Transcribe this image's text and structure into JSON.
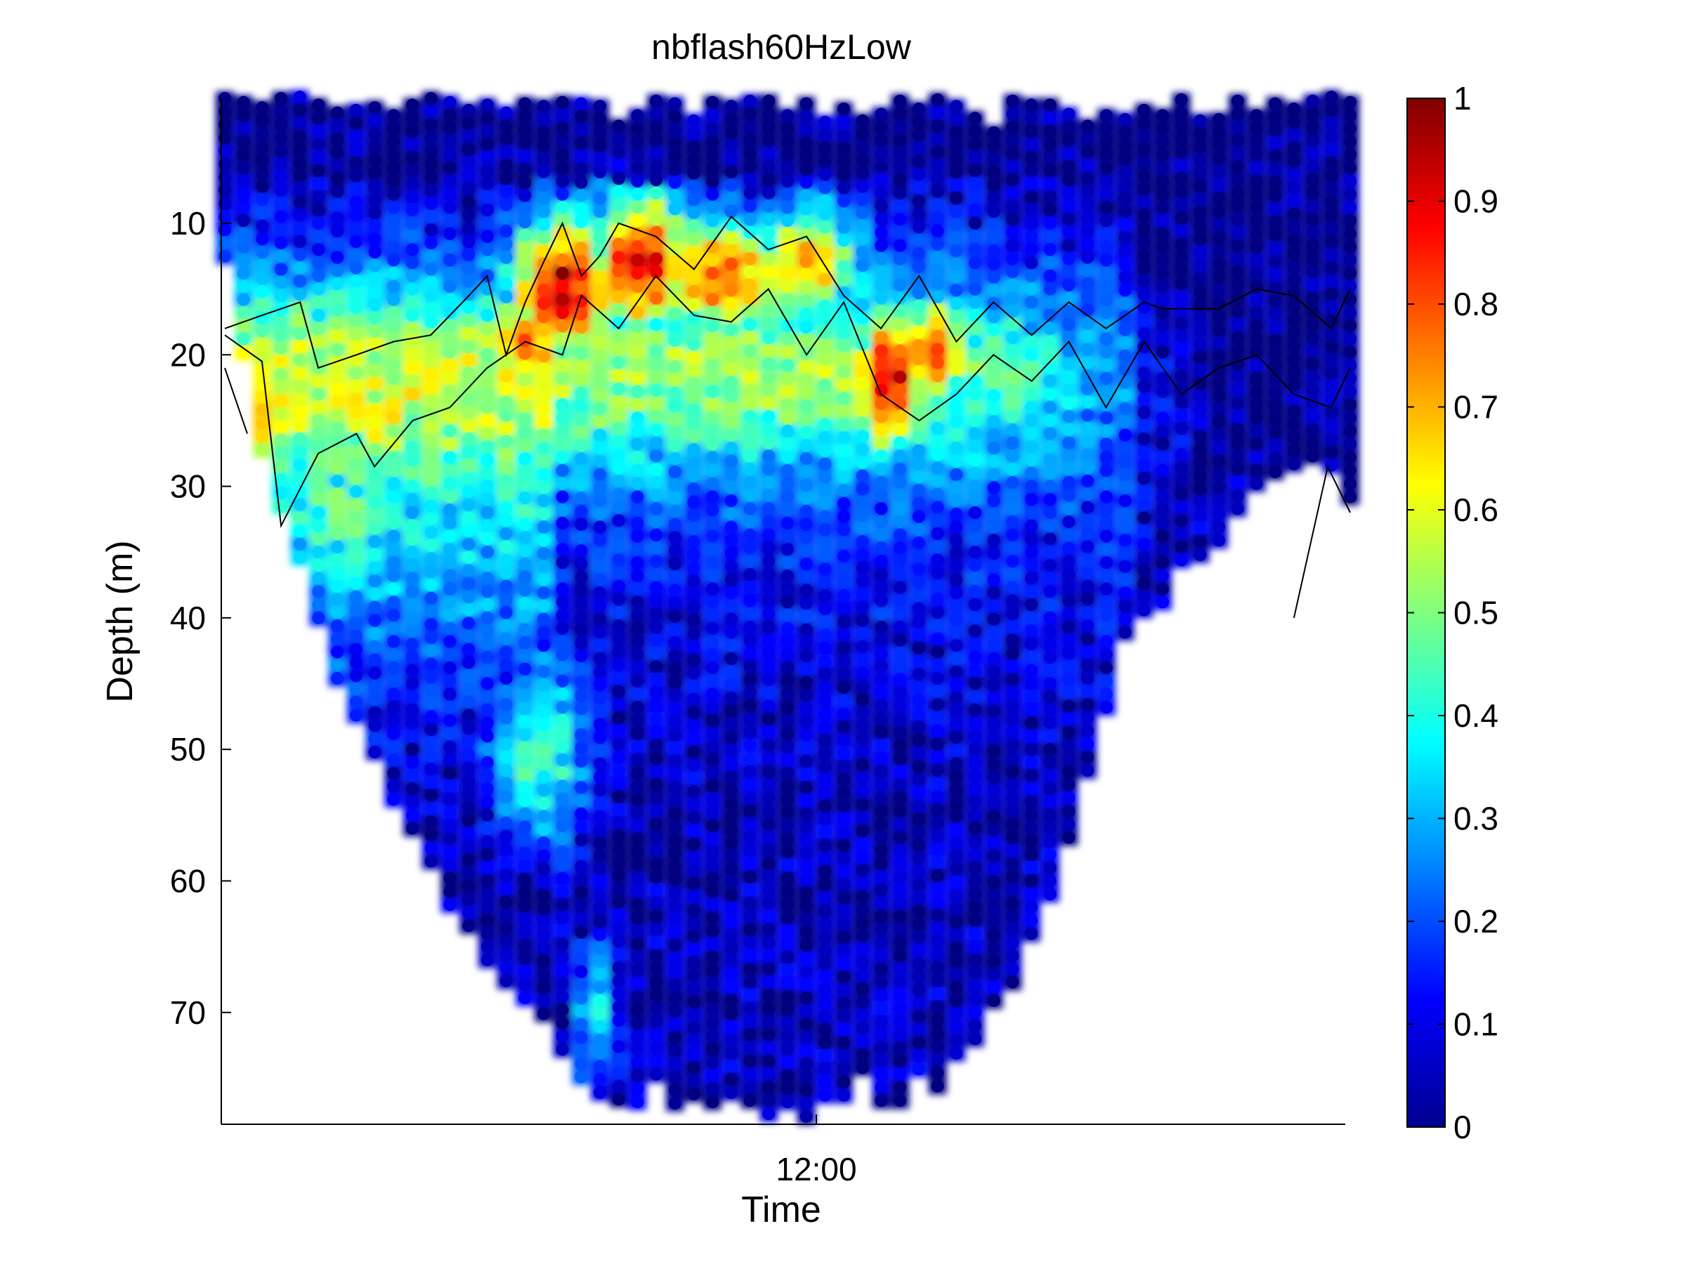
{
  "chart_data": {
    "type": "scatter",
    "title": "nbflash60HzLow",
    "xlabel": "Time",
    "ylabel": "Depth (m)",
    "x_tick_labels": [
      "12:00"
    ],
    "y_ticks": [
      10,
      20,
      30,
      40,
      50,
      60,
      70
    ],
    "y_range_top_to_bottom": [
      0.5,
      78.5
    ],
    "y_reversed": true,
    "grid": false,
    "colormap": "jet",
    "colorbar": {
      "ticks": [
        0,
        0.1,
        0.2,
        0.3,
        0.4,
        0.5,
        0.6,
        0.7,
        0.8,
        0.9,
        1
      ],
      "labels": [
        "0",
        "0.1",
        "0.2",
        "0.3",
        "0.4",
        "0.5",
        "0.6",
        "0.7",
        "0.8",
        "0.9",
        "1"
      ],
      "range": [
        0,
        1
      ]
    },
    "profiles": {
      "count": 61,
      "top_depth_m": [
        0.5,
        0.8,
        1.2,
        0.5,
        0.4,
        1.0,
        1.6,
        1.4,
        1.2,
        1.8,
        1.0,
        0.5,
        0.8,
        1.4,
        1.0,
        1.6,
        0.9,
        1.1,
        0.8,
        0.9,
        1.1,
        2.6,
        1.8,
        0.7,
        0.9,
        2.2,
        0.8,
        1.1,
        0.7,
        0.7,
        1.8,
        0.9,
        2.3,
        1.3,
        2.2,
        1.7,
        0.7,
        1.3,
        0.6,
        1.1,
        2.0,
        3.1,
        0.7,
        1.0,
        1.0,
        1.7,
        2.6,
        1.8,
        2.1,
        1.4,
        1.8,
        0.6,
        2.2,
        2.1,
        0.7,
        1.8,
        0.9,
        1.3,
        0.7,
        0.4,
        0.8
      ],
      "bottom_depth_m": [
        13,
        20,
        28,
        32,
        36,
        40,
        45,
        48,
        51,
        54,
        56,
        59,
        62,
        64,
        66,
        68,
        69,
        71,
        73,
        75,
        77,
        77,
        77,
        75,
        77,
        77,
        77,
        77,
        77,
        78,
        77,
        78,
        77,
        77,
        75,
        77,
        77,
        75,
        76,
        74,
        72,
        70,
        68,
        64,
        61,
        57,
        52,
        47,
        42,
        40,
        39,
        36,
        36,
        35,
        32,
        30,
        29,
        29,
        28,
        29,
        31
      ]
    },
    "contour_lines": {
      "upper_boundary": {
        "time_fraction": [
          0.0,
          0.033,
          0.067,
          0.083,
          0.117,
          0.15,
          0.183,
          0.217,
          0.233,
          0.25,
          0.267,
          0.283,
          0.3,
          0.317,
          0.333,
          0.35,
          0.383,
          0.417,
          0.45,
          0.483,
          0.517,
          0.55,
          0.583,
          0.617,
          0.65,
          0.683,
          0.717,
          0.75,
          0.783,
          0.8,
          0.817,
          0.833,
          0.85,
          0.883,
          0.917,
          0.95,
          0.983,
          1.0
        ],
        "depth_m": [
          18,
          17,
          16,
          21,
          20,
          19,
          18.5,
          15.5,
          14,
          20,
          16,
          13,
          10,
          14,
          12.5,
          10,
          11,
          13.5,
          9.5,
          12,
          11,
          15.5,
          18,
          14,
          19,
          16,
          18.5,
          16,
          18,
          17,
          16,
          16.5,
          16.5,
          16.5,
          15,
          15.5,
          18,
          15
        ]
      },
      "lower_boundary": {
        "time_fraction": [
          0.0,
          0.033,
          0.05,
          0.083,
          0.117,
          0.133,
          0.167,
          0.2,
          0.233,
          0.267,
          0.3,
          0.317,
          0.35,
          0.383,
          0.417,
          0.45,
          0.483,
          0.517,
          0.55,
          0.583,
          0.617,
          0.65,
          0.683,
          0.717,
          0.75,
          0.783,
          0.817,
          0.85,
          0.883,
          0.917,
          0.95,
          0.983,
          1.0
        ],
        "depth_m": [
          18.5,
          20.5,
          33,
          27.5,
          26,
          28.5,
          25,
          24,
          21,
          19,
          20,
          15.5,
          18,
          14,
          17,
          17.5,
          15,
          20,
          16,
          23,
          25,
          23,
          20,
          22,
          19,
          24,
          19,
          23,
          21,
          20,
          23,
          24,
          21
        ]
      },
      "edge_fragments": [
        {
          "time_fraction": [
            0.0,
            0.02
          ],
          "depth_m": [
            21,
            26
          ]
        },
        {
          "time_fraction": [
            0.95,
            0.98,
            1.0
          ],
          "depth_m": [
            40,
            28.5,
            32
          ]
        }
      ]
    }
  }
}
